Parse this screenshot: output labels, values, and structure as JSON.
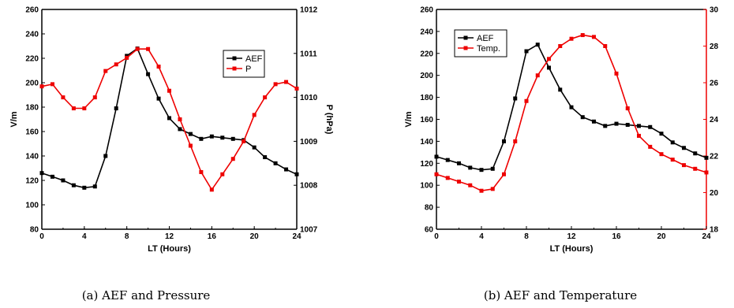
{
  "colors": {
    "aef": "#000000",
    "right_series": "#ee0000",
    "axis": "#000000"
  },
  "captions": [
    "(a) AEF and Pressure",
    "(b) AEF and Temperature"
  ],
  "chart_data": [
    {
      "type": "line",
      "caption": "(a) AEF and Pressure",
      "xlabel": "LT (Hours)",
      "ylabel": "V/m",
      "ylabel_right": "P (hPa)",
      "xlim": [
        0,
        24
      ],
      "xticks": [
        "0",
        "4",
        "8",
        "12",
        "16",
        "20",
        "24"
      ],
      "ylim": [
        80,
        260
      ],
      "yticks": [
        "80",
        "100",
        "120",
        "140",
        "160",
        "180",
        "200",
        "220",
        "240",
        "260"
      ],
      "ylim_right": [
        1007,
        1012
      ],
      "yticks_right": [
        "1007",
        "1008",
        "1009",
        "1010",
        "1011",
        "1012"
      ],
      "grid": false,
      "legend_position": "top-right",
      "series": [
        {
          "name": "AEF",
          "axis": "left",
          "color": "#000000",
          "x": [
            0,
            1,
            2,
            3,
            4,
            5,
            6,
            7,
            8,
            9,
            10,
            11,
            12,
            13,
            14,
            15,
            16,
            17,
            18,
            19,
            20,
            21,
            22,
            23,
            24
          ],
          "values": [
            126,
            123,
            120,
            116,
            114,
            115,
            140,
            179,
            222,
            228,
            207,
            187,
            171,
            162,
            158,
            154,
            156,
            155,
            154,
            153,
            147,
            139,
            134,
            129,
            125
          ]
        },
        {
          "name": "P",
          "axis": "right",
          "color": "#ee0000",
          "x": [
            0,
            1,
            2,
            3,
            4,
            5,
            6,
            7,
            8,
            9,
            10,
            11,
            12,
            13,
            14,
            15,
            16,
            17,
            18,
            19,
            20,
            21,
            22,
            23,
            24
          ],
          "values": [
            1010.25,
            1010.3,
            1010.0,
            1009.75,
            1009.75,
            1010.0,
            1010.6,
            1010.75,
            1010.9,
            1011.1,
            1011.1,
            1010.7,
            1010.15,
            1009.5,
            1008.9,
            1008.3,
            1007.9,
            1008.25,
            1008.6,
            1009.0,
            1009.6,
            1010.0,
            1010.3,
            1010.35,
            1010.2
          ]
        }
      ]
    },
    {
      "type": "line",
      "caption": "(b) AEF and Temperature",
      "xlabel": "LT (Hours)",
      "ylabel": "V/m",
      "ylabel_right": "T(°C)",
      "xlim": [
        0,
        24
      ],
      "xticks": [
        "0",
        "4",
        "8",
        "12",
        "16",
        "20",
        "24"
      ],
      "ylim": [
        60,
        260
      ],
      "yticks": [
        "60",
        "80",
        "100",
        "120",
        "140",
        "160",
        "180",
        "200",
        "220",
        "240",
        "260"
      ],
      "ylim_right": [
        18,
        30
      ],
      "yticks_right": [
        "18",
        "20",
        "22",
        "24",
        "26",
        "28",
        "30"
      ],
      "grid": false,
      "legend_position": "top-left",
      "series": [
        {
          "name": "AEF",
          "axis": "left",
          "color": "#000000",
          "x": [
            0,
            1,
            2,
            3,
            4,
            5,
            6,
            7,
            8,
            9,
            10,
            11,
            12,
            13,
            14,
            15,
            16,
            17,
            18,
            19,
            20,
            21,
            22,
            23,
            24
          ],
          "values": [
            126,
            123,
            120,
            116,
            114,
            115,
            140,
            179,
            222,
            228,
            207,
            187,
            171,
            162,
            158,
            154,
            156,
            155,
            154,
            153,
            147,
            139,
            134,
            129,
            125
          ]
        },
        {
          "name": "Temp.",
          "axis": "right",
          "color": "#ee0000",
          "x": [
            0,
            1,
            2,
            3,
            4,
            5,
            6,
            7,
            8,
            9,
            10,
            11,
            12,
            13,
            14,
            15,
            16,
            17,
            18,
            19,
            20,
            21,
            22,
            23,
            24
          ],
          "values": [
            21.0,
            20.8,
            20.6,
            20.4,
            20.1,
            20.2,
            21.0,
            22.8,
            25.0,
            26.4,
            27.3,
            28.0,
            28.4,
            28.6,
            28.5,
            28.0,
            26.5,
            24.6,
            23.1,
            22.5,
            22.1,
            21.8,
            21.5,
            21.3,
            21.1
          ]
        }
      ]
    }
  ]
}
